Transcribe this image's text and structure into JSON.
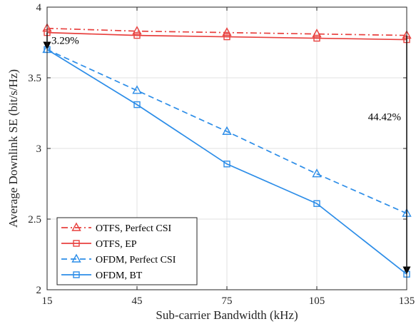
{
  "chart_data": {
    "type": "line",
    "title": "",
    "xlabel": "Sub-carrier Bandwidth (kHz)",
    "ylabel": "Average Downlink SE (bit/s/Hz)",
    "xlim": [
      15,
      135
    ],
    "ylim": [
      2,
      4
    ],
    "grid": true,
    "legend_position": "bottom-left",
    "x_ticks": [
      "15",
      "45",
      "75",
      "105",
      "135"
    ],
    "y_ticks": [
      "2",
      "2.5",
      "3",
      "3.5",
      "4"
    ],
    "x": [
      15,
      45,
      75,
      105,
      135
    ],
    "series": [
      {
        "name": "OTFS, Perfect CSI",
        "values": [
          3.85,
          3.83,
          3.82,
          3.81,
          3.8
        ],
        "color": "#e8413f",
        "dash": "dashdot",
        "marker": "triangle"
      },
      {
        "name": "OTFS, EP",
        "values": [
          3.82,
          3.8,
          3.79,
          3.78,
          3.77
        ],
        "color": "#e8413f",
        "dash": "solid",
        "marker": "square"
      },
      {
        "name": "OFDM, Perfect CSI",
        "values": [
          3.7,
          3.41,
          3.12,
          2.82,
          2.54
        ],
        "color": "#2c8de8",
        "dash": "dashed",
        "marker": "triangle"
      },
      {
        "name": "OFDM, BT",
        "values": [
          3.7,
          3.31,
          2.89,
          2.61,
          2.11
        ],
        "color": "#2c8de8",
        "dash": "solid",
        "marker": "square"
      }
    ],
    "annotations": [
      {
        "text": "3.29%",
        "x": 15,
        "from": 3.82,
        "to": 3.7
      },
      {
        "text": "44.42%",
        "x": 135,
        "from": 3.8,
        "to": 2.11
      }
    ]
  }
}
